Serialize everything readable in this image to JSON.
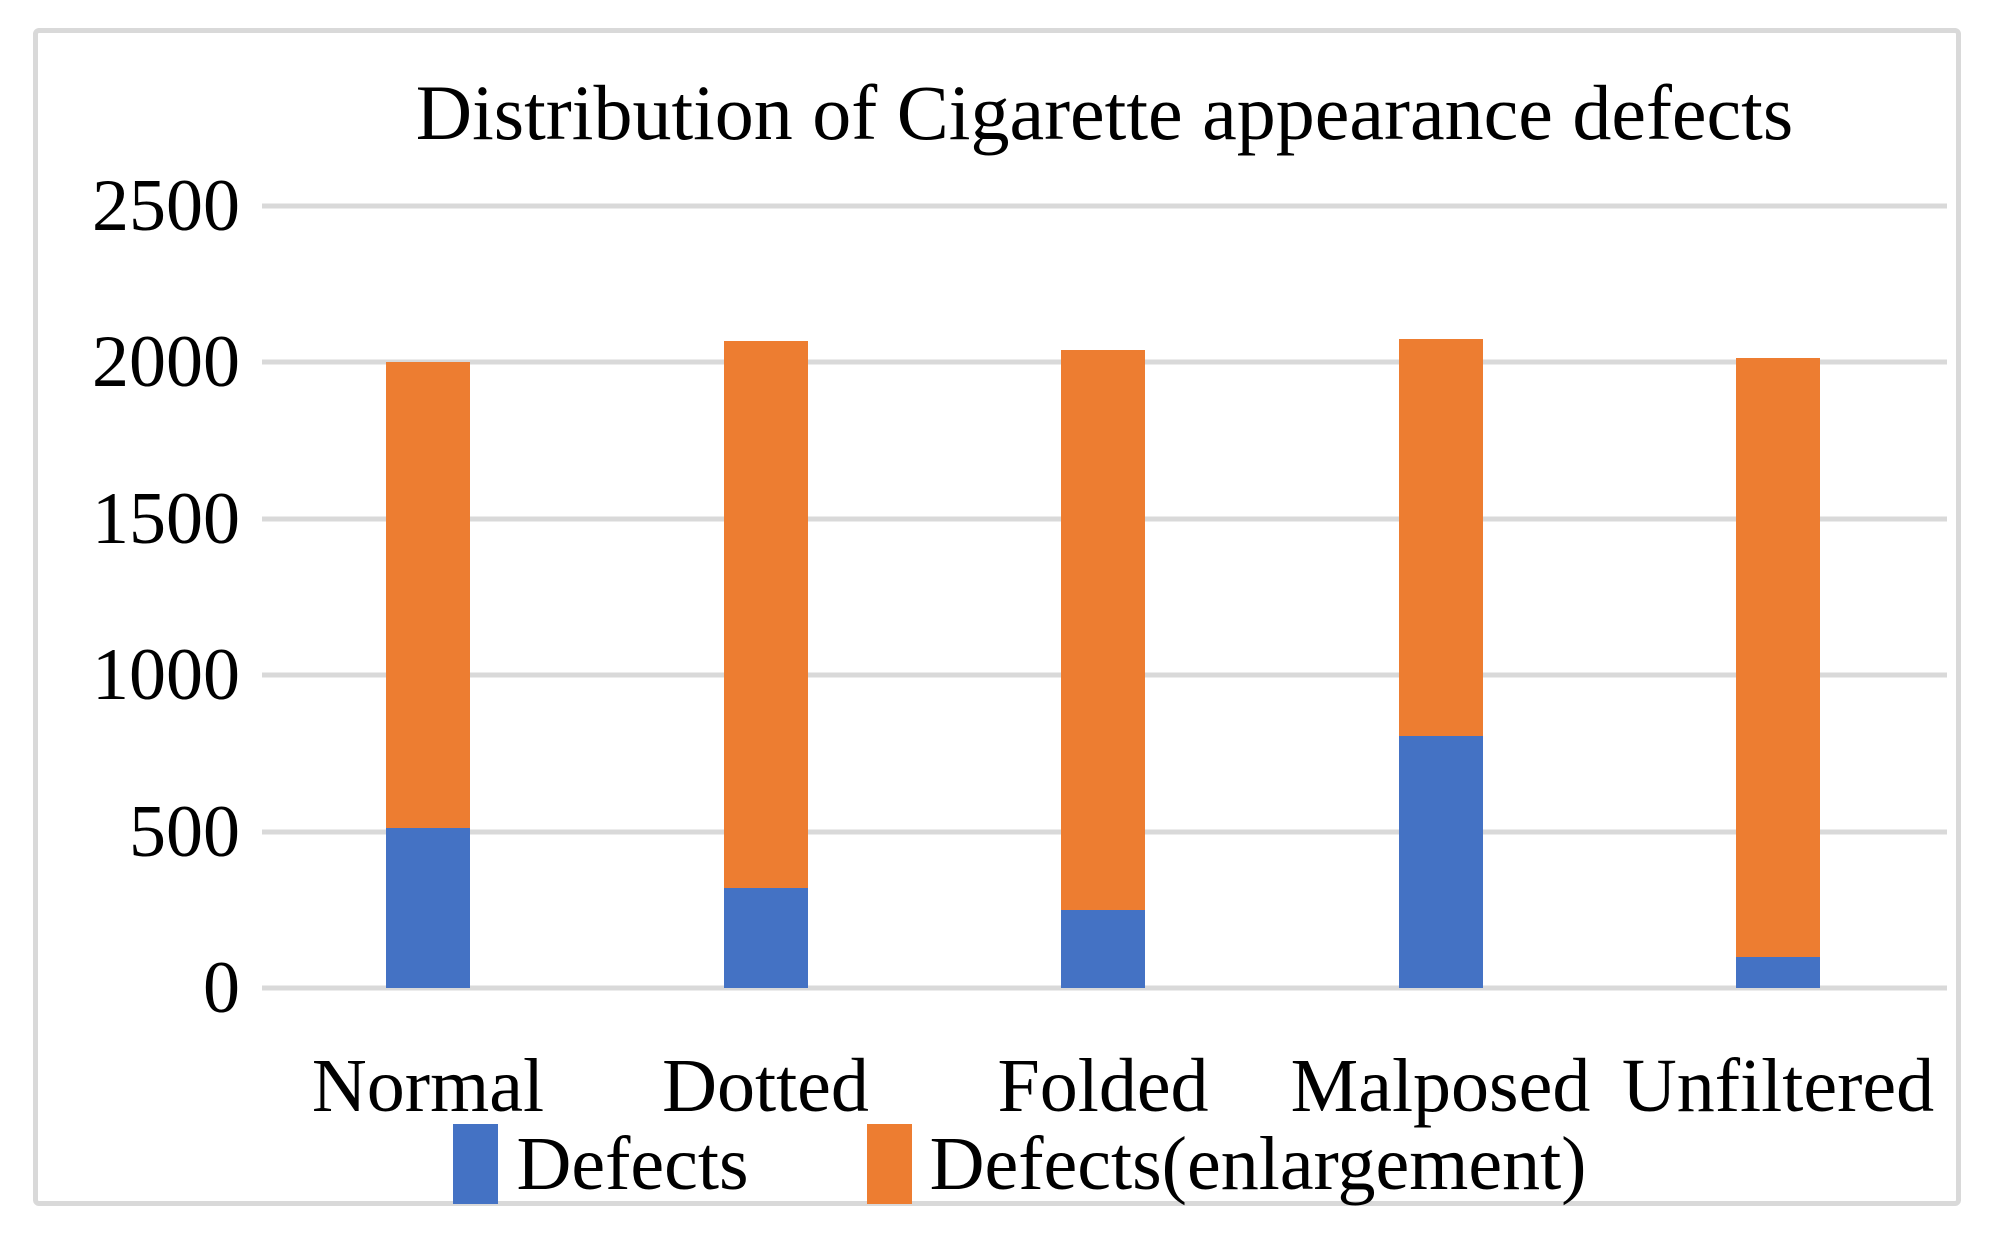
{
  "chart_data": {
    "type": "bar",
    "stacked": true,
    "orientation": "vertical",
    "title": "Distribution of Cigarette appearance defects",
    "categories": [
      "Normal",
      "Dotted",
      "Folded",
      "Malposed",
      "Unfiltered"
    ],
    "series": [
      {
        "name": "Defects",
        "color": "#4472C4",
        "values": [
          510,
          320,
          250,
          805,
          100
        ]
      },
      {
        "name": "Defects(enlargement)",
        "color": "#ED7D31",
        "values": [
          1490,
          1750,
          1790,
          1270,
          1915
        ]
      }
    ],
    "stack_totals": [
      2000,
      2070,
      2040,
      2075,
      2015
    ],
    "xlabel": "",
    "ylabel": "",
    "ylim": [
      0,
      2500
    ],
    "yticks": [
      0,
      500,
      1000,
      1500,
      2000,
      2500
    ],
    "grid": true,
    "gridline_color": "#D9D9D9",
    "frame_border_color": "#D9D9D9",
    "background_color": "#FFFFFF",
    "text_color": "#000000",
    "legend_position": "bottom"
  }
}
